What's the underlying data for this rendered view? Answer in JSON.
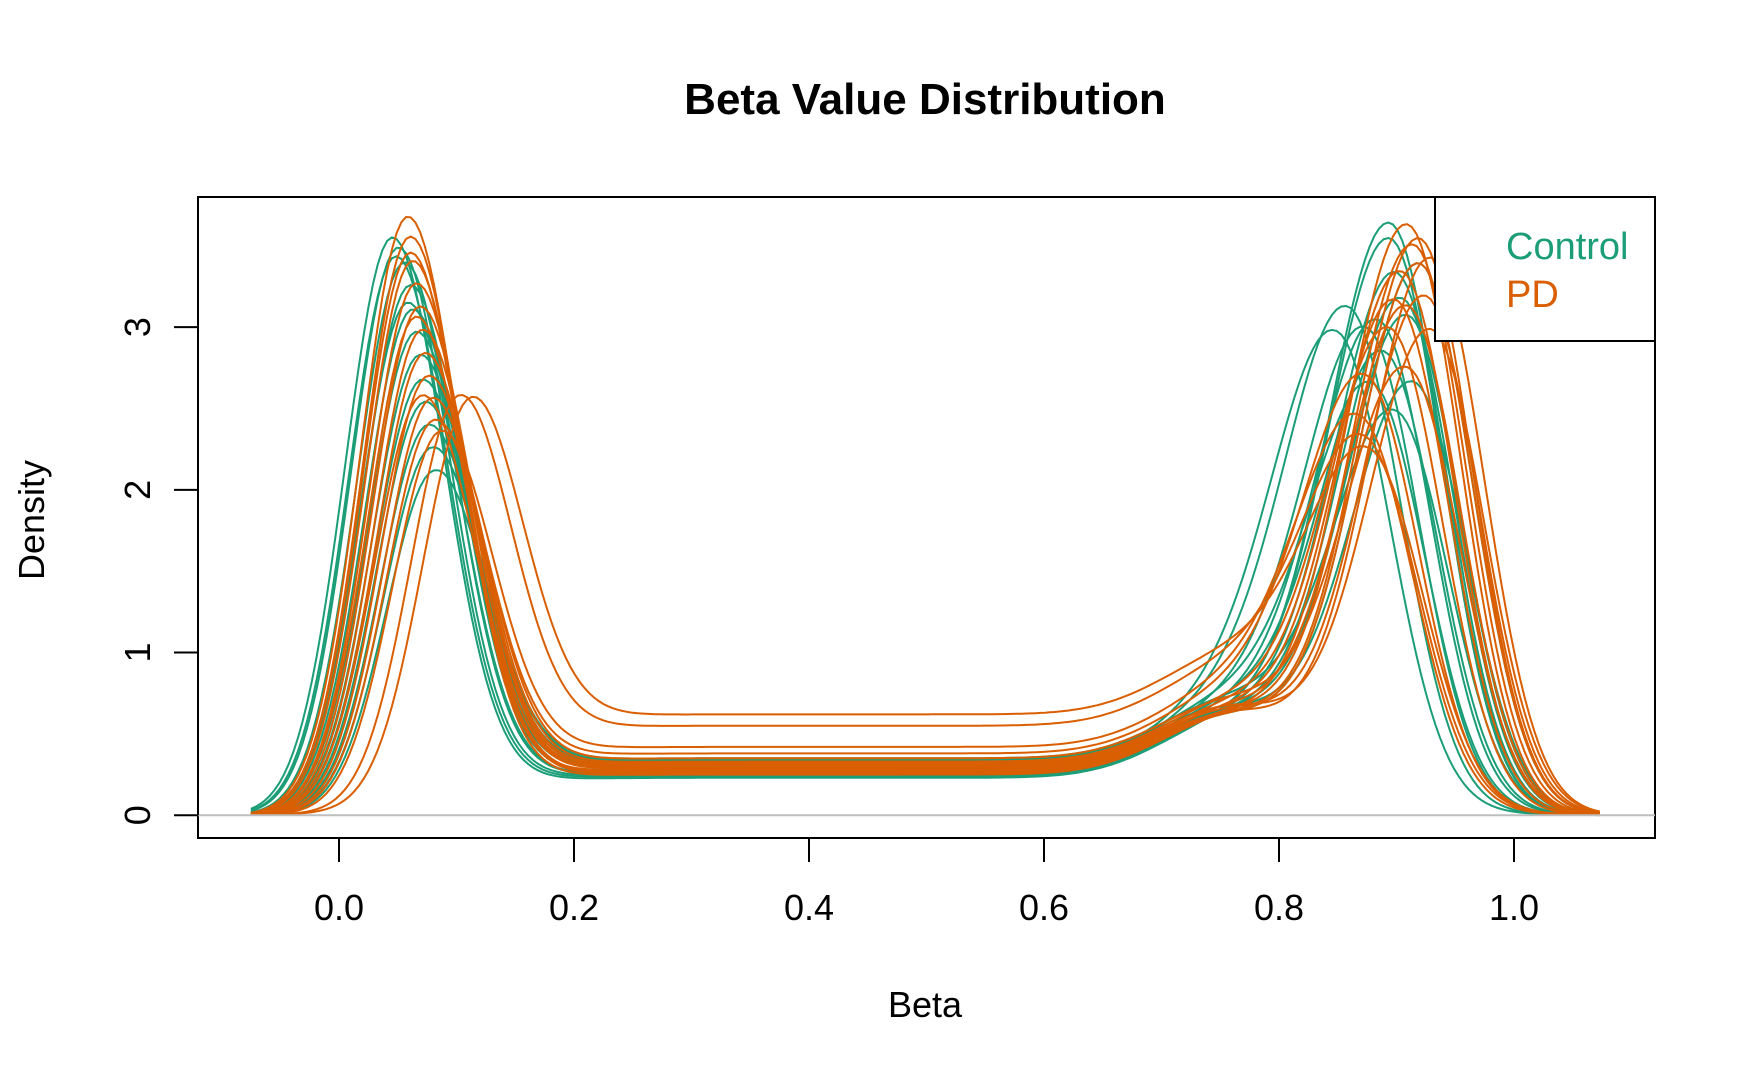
{
  "chart_data": {
    "type": "line",
    "title": "Beta Value Distribution",
    "xlabel": "Beta",
    "ylabel": "Density",
    "xlim": [
      -0.12,
      1.12
    ],
    "ylim": [
      -0.14,
      3.8
    ],
    "x_ticks": [
      0.0,
      0.2,
      0.4,
      0.6,
      0.8,
      1.0
    ],
    "x_tick_labels": [
      "0.0",
      "0.2",
      "0.4",
      "0.6",
      "0.8",
      "1.0"
    ],
    "y_ticks": [
      0,
      1,
      2,
      3
    ],
    "y_tick_labels": [
      "0",
      "1",
      "2",
      "3"
    ],
    "grid": false,
    "baseline": 0,
    "legend": {
      "placement": "top-right",
      "entries": [
        {
          "label": "Control",
          "color": "#1b9e77"
        },
        {
          "label": "PD",
          "color": "#d95f02"
        }
      ]
    },
    "series": [
      {
        "group": "Control",
        "color": "#1b9e77",
        "peak1": 0.045,
        "height1": 3.52,
        "peak2": 0.895,
        "height2": 3.5,
        "mid": 0.23
      },
      {
        "group": "Control",
        "color": "#1b9e77",
        "peak1": 0.05,
        "height1": 3.45,
        "peak2": 0.9,
        "height2": 3.2,
        "mid": 0.25
      },
      {
        "group": "Control",
        "color": "#1b9e77",
        "peak1": 0.055,
        "height1": 3.35,
        "peak2": 0.905,
        "height2": 3.05,
        "mid": 0.26
      },
      {
        "group": "Control",
        "color": "#1b9e77",
        "peak1": 0.06,
        "height1": 3.2,
        "peak2": 0.91,
        "height2": 2.95,
        "mid": 0.28
      },
      {
        "group": "Control",
        "color": "#1b9e77",
        "peak1": 0.062,
        "height1": 3.05,
        "peak2": 0.885,
        "height2": 2.85,
        "mid": 0.27
      },
      {
        "group": "Control",
        "color": "#1b9e77",
        "peak1": 0.065,
        "height1": 2.9,
        "peak2": 0.875,
        "height2": 2.75,
        "mid": 0.3
      },
      {
        "group": "Control",
        "color": "#1b9e77",
        "peak1": 0.068,
        "height1": 2.75,
        "peak2": 0.89,
        "height2": 2.65,
        "mid": 0.31
      },
      {
        "group": "Control",
        "color": "#1b9e77",
        "peak1": 0.07,
        "height1": 2.6,
        "peak2": 0.915,
        "height2": 2.55,
        "mid": 0.29
      },
      {
        "group": "Control",
        "color": "#1b9e77",
        "peak1": 0.072,
        "height1": 2.45,
        "peak2": 0.86,
        "height2": 2.8,
        "mid": 0.32
      },
      {
        "group": "Control",
        "color": "#1b9e77",
        "peak1": 0.075,
        "height1": 2.3,
        "peak2": 0.85,
        "height2": 2.6,
        "mid": 0.33
      },
      {
        "group": "Control",
        "color": "#1b9e77",
        "peak1": 0.078,
        "height1": 2.15,
        "peak2": 0.88,
        "height2": 2.4,
        "mid": 0.34
      },
      {
        "group": "Control",
        "color": "#1b9e77",
        "peak1": 0.08,
        "height1": 2.0,
        "peak2": 0.9,
        "height2": 2.3,
        "mid": 0.35
      },
      {
        "group": "Control",
        "color": "#1b9e77",
        "peak1": 0.058,
        "height1": 3.1,
        "peak2": 0.92,
        "height2": 3.3,
        "mid": 0.26
      },
      {
        "group": "Control",
        "color": "#1b9e77",
        "peak1": 0.048,
        "height1": 3.4,
        "peak2": 0.895,
        "height2": 3.4,
        "mid": 0.24
      },
      {
        "group": "PD",
        "color": "#d95f02",
        "peak1": 0.058,
        "height1": 3.63,
        "peak2": 0.91,
        "height2": 3.52,
        "mid": 0.25
      },
      {
        "group": "PD",
        "color": "#d95f02",
        "peak1": 0.06,
        "height1": 3.5,
        "peak2": 0.915,
        "height2": 3.4,
        "mid": 0.27
      },
      {
        "group": "PD",
        "color": "#d95f02",
        "peak1": 0.062,
        "height1": 3.35,
        "peak2": 0.92,
        "height2": 3.3,
        "mid": 0.26
      },
      {
        "group": "PD",
        "color": "#d95f02",
        "peak1": 0.065,
        "height1": 3.2,
        "peak2": 0.905,
        "height2": 3.2,
        "mid": 0.29
      },
      {
        "group": "PD",
        "color": "#d95f02",
        "peak1": 0.068,
        "height1": 3.05,
        "peak2": 0.925,
        "height2": 3.1,
        "mid": 0.3
      },
      {
        "group": "PD",
        "color": "#d95f02",
        "peak1": 0.07,
        "height1": 2.9,
        "peak2": 0.9,
        "height2": 3.0,
        "mid": 0.31
      },
      {
        "group": "PD",
        "color": "#d95f02",
        "peak1": 0.072,
        "height1": 2.75,
        "peak2": 0.93,
        "height2": 2.9,
        "mid": 0.32
      },
      {
        "group": "PD",
        "color": "#d95f02",
        "peak1": 0.075,
        "height1": 2.6,
        "peak2": 0.895,
        "height2": 2.8,
        "mid": 0.33
      },
      {
        "group": "PD",
        "color": "#d95f02",
        "peak1": 0.078,
        "height1": 2.45,
        "peak2": 0.91,
        "height2": 2.6,
        "mid": 0.35
      },
      {
        "group": "PD",
        "color": "#d95f02",
        "peak1": 0.08,
        "height1": 2.3,
        "peak2": 0.875,
        "height2": 2.4,
        "mid": 0.38
      },
      {
        "group": "PD",
        "color": "#d95f02",
        "peak1": 0.085,
        "height1": 2.2,
        "peak2": 0.87,
        "height2": 2.1,
        "mid": 0.42
      },
      {
        "group": "PD",
        "color": "#d95f02",
        "peak1": 0.1,
        "height1": 2.3,
        "peak2": 0.875,
        "height2": 1.9,
        "mid": 0.55
      },
      {
        "group": "PD",
        "color": "#d95f02",
        "peak1": 0.11,
        "height1": 2.2,
        "peak2": 0.88,
        "height2": 1.8,
        "mid": 0.62
      },
      {
        "group": "PD",
        "color": "#d95f02",
        "peak1": 0.065,
        "height1": 3.0,
        "peak2": 0.92,
        "height2": 3.45,
        "mid": 0.27
      },
      {
        "group": "PD",
        "color": "#d95f02",
        "peak1": 0.06,
        "height1": 3.4,
        "peak2": 0.93,
        "height2": 3.35,
        "mid": 0.28
      },
      {
        "group": "PD",
        "color": "#d95f02",
        "peak1": 0.07,
        "height1": 2.5,
        "peak2": 0.91,
        "height2": 3.0,
        "mid": 0.3
      }
    ]
  }
}
